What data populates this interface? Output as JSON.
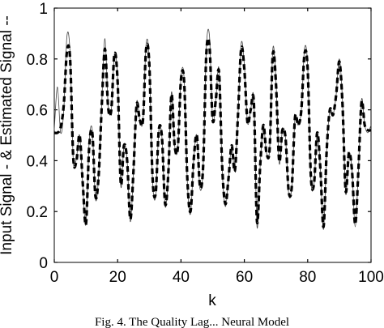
{
  "chart_data": {
    "type": "line",
    "title": "",
    "xlabel": "k",
    "ylabel": "Input Signal - & Estimated Signal --",
    "xlim": [
      0,
      100
    ],
    "ylim": [
      0,
      1
    ],
    "x_ticks": [
      "0",
      "20",
      "40",
      "60",
      "80",
      "100"
    ],
    "y_ticks": [
      "0",
      "0.2",
      "0.4",
      "0.6",
      "0.8",
      "1"
    ],
    "grid": false,
    "series": [
      {
        "style": "solid-thin",
        "color": "#444444",
        "x": [
          0,
          1,
          2,
          3,
          4,
          5,
          6,
          7,
          8,
          9,
          10,
          11,
          12,
          13,
          14,
          15,
          16,
          17,
          18,
          19,
          20,
          21,
          22,
          23,
          24,
          25,
          26,
          27,
          28,
          29,
          30,
          31,
          32,
          33,
          34,
          35,
          36,
          37,
          38,
          39,
          40,
          41,
          42,
          43,
          44,
          45,
          46,
          47,
          48,
          49,
          50,
          51,
          52,
          53,
          54,
          55,
          56,
          57,
          58,
          59,
          60,
          61,
          62,
          63,
          64,
          65,
          66,
          67,
          68,
          69,
          70,
          71,
          72,
          73,
          74,
          75,
          76,
          77,
          78,
          79,
          80,
          81,
          82,
          83,
          84,
          85,
          86,
          87,
          88,
          89,
          90,
          91,
          92,
          93,
          94,
          95,
          96,
          97,
          98,
          99,
          100
        ],
        "y": [
          0.52,
          0.69,
          0.51,
          0.6,
          0.89,
          0.82,
          0.4,
          0.41,
          0.5,
          0.3,
          0.15,
          0.47,
          0.52,
          0.25,
          0.34,
          0.63,
          0.88,
          0.62,
          0.6,
          0.82,
          0.72,
          0.3,
          0.46,
          0.4,
          0.16,
          0.36,
          0.63,
          0.56,
          0.56,
          0.86,
          0.79,
          0.33,
          0.26,
          0.52,
          0.49,
          0.22,
          0.35,
          0.67,
          0.46,
          0.45,
          0.73,
          0.72,
          0.32,
          0.19,
          0.4,
          0.5,
          0.29,
          0.38,
          0.84,
          0.89,
          0.56,
          0.64,
          0.76,
          0.37,
          0.22,
          0.33,
          0.46,
          0.36,
          0.58,
          0.86,
          0.78,
          0.55,
          0.6,
          0.64,
          0.14,
          0.38,
          0.54,
          0.43,
          0.45,
          0.84,
          0.71,
          0.39,
          0.52,
          0.49,
          0.27,
          0.3,
          0.57,
          0.54,
          0.6,
          0.84,
          0.77,
          0.33,
          0.31,
          0.51,
          0.37,
          0.13,
          0.44,
          0.6,
          0.58,
          0.66,
          0.8,
          0.63,
          0.27,
          0.43,
          0.36,
          0.14,
          0.36,
          0.64,
          0.54,
          0.51,
          0.54
        ]
      },
      {
        "style": "dashed-thick",
        "color": "#000000",
        "x": [
          0,
          1,
          2,
          3,
          4,
          5,
          6,
          7,
          8,
          9,
          10,
          11,
          12,
          13,
          14,
          15,
          16,
          17,
          18,
          19,
          20,
          21,
          22,
          23,
          24,
          25,
          26,
          27,
          28,
          29,
          30,
          31,
          32,
          33,
          34,
          35,
          36,
          37,
          38,
          39,
          40,
          41,
          42,
          43,
          44,
          45,
          46,
          47,
          48,
          49,
          50,
          51,
          52,
          53,
          54,
          55,
          56,
          57,
          58,
          59,
          60,
          61,
          62,
          63,
          64,
          65,
          66,
          67,
          68,
          69,
          70,
          71,
          72,
          73,
          74,
          75,
          76,
          77,
          78,
          79,
          80,
          81,
          82,
          83,
          84,
          85,
          86,
          87,
          88,
          89,
          90,
          91,
          92,
          93,
          94,
          95,
          96,
          97,
          98,
          99,
          100
        ],
        "y": [
          0.51,
          0.51,
          0.53,
          0.62,
          0.83,
          0.8,
          0.41,
          0.4,
          0.5,
          0.31,
          0.15,
          0.45,
          0.51,
          0.26,
          0.34,
          0.62,
          0.84,
          0.61,
          0.6,
          0.82,
          0.71,
          0.31,
          0.46,
          0.4,
          0.17,
          0.36,
          0.62,
          0.56,
          0.56,
          0.84,
          0.78,
          0.34,
          0.27,
          0.52,
          0.49,
          0.23,
          0.35,
          0.66,
          0.46,
          0.45,
          0.72,
          0.71,
          0.33,
          0.2,
          0.4,
          0.5,
          0.3,
          0.38,
          0.82,
          0.85,
          0.56,
          0.64,
          0.75,
          0.38,
          0.23,
          0.33,
          0.46,
          0.36,
          0.58,
          0.84,
          0.76,
          0.55,
          0.6,
          0.63,
          0.16,
          0.38,
          0.54,
          0.43,
          0.45,
          0.82,
          0.7,
          0.4,
          0.52,
          0.49,
          0.28,
          0.3,
          0.57,
          0.54,
          0.6,
          0.82,
          0.76,
          0.34,
          0.31,
          0.51,
          0.37,
          0.14,
          0.44,
          0.6,
          0.58,
          0.66,
          0.79,
          0.62,
          0.28,
          0.43,
          0.36,
          0.15,
          0.36,
          0.63,
          0.54,
          0.52,
          0.52
        ]
      }
    ]
  },
  "caption": "Fig. 4. The Quality Lag... Neural Model"
}
